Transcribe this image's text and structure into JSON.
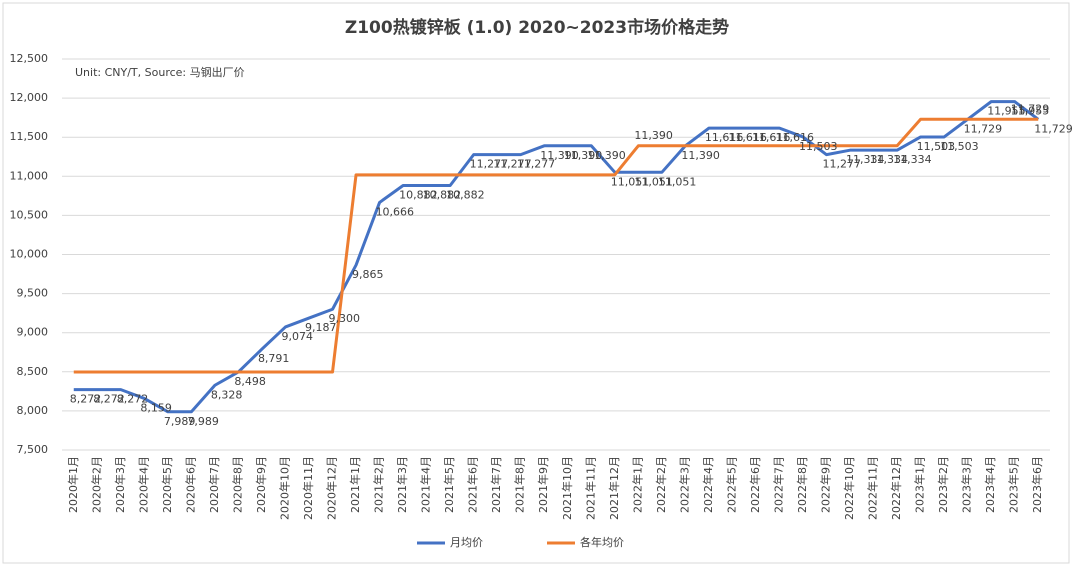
{
  "chart_data": {
    "type": "line",
    "title": "Z100热镀锌板 (1.0) 2020~2023市场价格走势",
    "annotation": "Unit: CNY/T, Source: 马钢出厂价",
    "categories": [
      "2020年1月",
      "2020年2月",
      "2020年3月",
      "2020年4月",
      "2020年5月",
      "2020年6月",
      "2020年7月",
      "2020年8月",
      "2020年9月",
      "2020年10月",
      "2020年11月",
      "2020年12月",
      "2021年1月",
      "2021年2月",
      "2021年3月",
      "2021年4月",
      "2021年5月",
      "2021年6月",
      "2021年7月",
      "2021年8月",
      "2021年9月",
      "2021年10月",
      "2021年11月",
      "2021年12月",
      "2022年1月",
      "2022年2月",
      "2022年3月",
      "2022年4月",
      "2022年5月",
      "2022年6月",
      "2022年7月",
      "2022年8月",
      "2022年9月",
      "2022年10月",
      "2022年11月",
      "2022年12月",
      "2023年1月",
      "2023年2月",
      "2023年3月",
      "2023年4月",
      "2023年5月",
      "2023年6月"
    ],
    "series": [
      {
        "name": "月均价",
        "color": "#4472c4",
        "values": [
          8272,
          8272,
          8272,
          8159,
          7989,
          7989,
          8328,
          8498,
          8791,
          9074,
          9187,
          9300,
          9865,
          10666,
          10882,
          10882,
          10882,
          11277,
          11277,
          11277,
          11390,
          11390,
          11390,
          11051,
          11051,
          11051,
          11390,
          11616,
          11616,
          11616,
          11616,
          11503,
          11277,
          11334,
          11334,
          11334,
          11503,
          11503,
          11729,
          11955,
          11955,
          11729
        ],
        "value_labels": [
          "8,272",
          "8,272",
          "8,272",
          "8,159",
          "7,989",
          "7,989",
          "8,328",
          "8,498",
          "8,791",
          "9,074",
          "9,187",
          "9,300",
          "9,865",
          "10,666",
          "10,882",
          "10,882",
          "10,882",
          "11,277",
          "11,277",
          "11,277",
          "11,390",
          "11,390",
          "11,390",
          "11,051",
          "11,051",
          "11,051",
          "11,390",
          "11,616",
          "11,616",
          "11,616",
          "11,616",
          "11,503",
          "11,277",
          "11,334",
          "11,334",
          "11,334",
          "11,503",
          "11,503",
          "11,729",
          "11,955",
          "11,955",
          "11,729"
        ]
      },
      {
        "name": "各年均价",
        "color": "#ed7d31",
        "values": [
          8498,
          8498,
          8498,
          8498,
          8498,
          8498,
          8498,
          8498,
          8498,
          8498,
          8498,
          8498,
          11019,
          11019,
          11019,
          11019,
          11019,
          11019,
          11019,
          11019,
          11019,
          11019,
          11019,
          11019,
          11390,
          11390,
          11390,
          11390,
          11390,
          11390,
          11390,
          11390,
          11390,
          11390,
          11390,
          11390,
          11729,
          11729,
          11729,
          11729,
          11729,
          11729
        ],
        "value_labels": [
          null,
          null,
          null,
          null,
          null,
          null,
          null,
          null,
          null,
          null,
          null,
          null,
          null,
          null,
          null,
          null,
          null,
          null,
          null,
          null,
          null,
          null,
          null,
          null,
          "11,390",
          null,
          null,
          null,
          null,
          null,
          null,
          null,
          null,
          null,
          null,
          null,
          null,
          null,
          null,
          null,
          "11,729",
          null
        ]
      }
    ],
    "ylim": [
      7500,
      12500
    ],
    "yticks": [
      {
        "value": 7500,
        "label": "7,500"
      },
      {
        "value": 8000,
        "label": "8,000"
      },
      {
        "value": 8500,
        "label": "8,500"
      },
      {
        "value": 9000,
        "label": "9,000"
      },
      {
        "value": 9500,
        "label": "9,500"
      },
      {
        "value": 10000,
        "label": "10,000"
      },
      {
        "value": 10500,
        "label": "10,500"
      },
      {
        "value": 11000,
        "label": "11,000"
      },
      {
        "value": 11500,
        "label": "11,500"
      },
      {
        "value": 12000,
        "label": "12,000"
      },
      {
        "value": 12500,
        "label": "12,500"
      }
    ],
    "grid": true,
    "legend": "bottom"
  }
}
